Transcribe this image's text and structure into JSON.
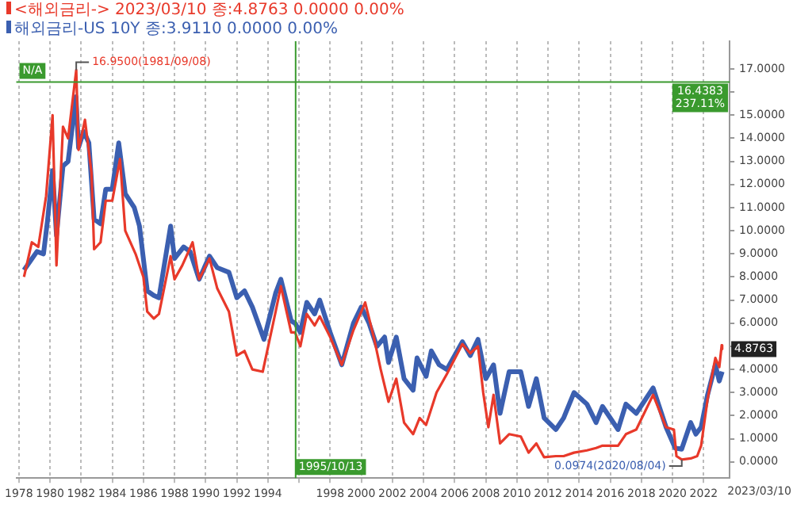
{
  "chart_data": {
    "type": "line",
    "legend": "top left",
    "grid": "x",
    "marker": "none",
    "line_style": "solid",
    "xlim": [
      "1977-11",
      "2023-09"
    ],
    "xticks": [
      {
        "value": "1978",
        "label": "1978"
      },
      {
        "value": "1980",
        "label": "1980"
      },
      {
        "value": "1982",
        "label": "1982"
      },
      {
        "value": "1984",
        "label": "1984"
      },
      {
        "value": "1986",
        "label": "1986"
      },
      {
        "value": "1988",
        "label": "1988"
      },
      {
        "value": "1990",
        "label": "1990"
      },
      {
        "value": "1992",
        "label": "1992"
      },
      {
        "value": "1994",
        "label": "1994"
      },
      {
        "value": "1996",
        "label": null
      },
      {
        "value": "1998",
        "label": "1998"
      },
      {
        "value": "2000",
        "label": "2000"
      },
      {
        "value": "2002",
        "label": "2002"
      },
      {
        "value": "2004",
        "label": "2004"
      },
      {
        "value": "2006",
        "label": "2006"
      },
      {
        "value": "2008",
        "label": "2008"
      },
      {
        "value": "2010",
        "label": "2010"
      },
      {
        "value": "2012",
        "label": "2012"
      },
      {
        "value": "2014",
        "label": "2014"
      },
      {
        "value": "2016",
        "label": "2016"
      },
      {
        "value": "2018",
        "label": "2018"
      },
      {
        "value": "2020",
        "label": "2020"
      },
      {
        "value": "2022",
        "label": "2022"
      }
    ],
    "ylim": [
      -0.7,
      18.2
    ],
    "yticks": [
      {
        "value": 0,
        "label": "0.0000"
      },
      {
        "value": 1,
        "label": "1.0000"
      },
      {
        "value": 2,
        "label": "2.0000"
      },
      {
        "value": 3,
        "label": "3.0000"
      },
      {
        "value": 4,
        "label": "4.0000"
      },
      {
        "value": 5,
        "label": null
      },
      {
        "value": 6,
        "label": "6.0000"
      },
      {
        "value": 7,
        "label": "7.0000"
      },
      {
        "value": 8,
        "label": "8.0000"
      },
      {
        "value": 9,
        "label": "9.0000"
      },
      {
        "value": 10,
        "label": "10.0000"
      },
      {
        "value": 11,
        "label": "11.0000"
      },
      {
        "value": 12,
        "label": "12.0000"
      },
      {
        "value": 13,
        "label": "13.0000"
      },
      {
        "value": 14,
        "label": "14.0000"
      },
      {
        "value": 15,
        "label": "15.0000"
      },
      {
        "value": 16,
        "label": null
      },
      {
        "value": 17,
        "label": "17.0000"
      }
    ],
    "series": [
      {
        "name": "<해외금리-> 2023/03/10 종:4.8763  0.0000 0.00%",
        "color": "#e8392a",
        "x": [
          "1978-05",
          "1978-11",
          "1979-04",
          "1979-10",
          "1980-03",
          "1980-06",
          "1980-11",
          "1981-03",
          "1981-09-08",
          "1981-11",
          "1982-04",
          "1982-09",
          "1982-11",
          "1983-04",
          "1983-08",
          "1984-01",
          "1984-07",
          "1984-11",
          "1985-07",
          "1986-01",
          "1986-04",
          "1986-09",
          "1987-01",
          "1987-10",
          "1988-01",
          "1988-07",
          "1989-03",
          "1989-08",
          "1990-04",
          "1990-10",
          "1991-07",
          "1992-01",
          "1992-07",
          "1993-01",
          "1993-09",
          "1994-07",
          "1994-11",
          "1995-07",
          "1995-10",
          "1996-02",
          "1996-07",
          "1997-01",
          "1997-05",
          "1998-01",
          "1998-10",
          "1999-07",
          "2000-04",
          "2000-11",
          "2001-04",
          "2001-10",
          "2002-04",
          "2002-10",
          "2003-05",
          "2003-10",
          "2004-03",
          "2004-11",
          "2005-07",
          "2006-07",
          "2007-01",
          "2007-07",
          "2007-11",
          "2008-03",
          "2008-07",
          "2008-12",
          "2009-07",
          "2010-04",
          "2010-10",
          "2011-04",
          "2011-10",
          "2012-07",
          "2013-01",
          "2013-09",
          "2014-07",
          "2015-02",
          "2015-07",
          "2016-07",
          "2017-01",
          "2017-09",
          "2018-10",
          "2019-08",
          "2020-02",
          "2020-04",
          "2020-08-04",
          "2021-03",
          "2021-08",
          "2021-11",
          "2022-04",
          "2022-10",
          "2023-01",
          "2023-02-27",
          "2023-03-10"
        ],
        "values": [
          8.0,
          9.5,
          9.3,
          11.5,
          15.0,
          8.5,
          14.5,
          14.0,
          16.95,
          13.5,
          14.8,
          12.5,
          9.2,
          9.5,
          11.3,
          11.3,
          13.1,
          10.0,
          9.0,
          8.0,
          6.5,
          6.2,
          6.4,
          8.9,
          7.9,
          8.5,
          9.5,
          7.9,
          8.8,
          7.5,
          6.5,
          4.6,
          4.8,
          4.0,
          3.9,
          6.5,
          7.6,
          5.6,
          5.6,
          5.0,
          6.4,
          5.9,
          6.3,
          5.4,
          4.2,
          5.7,
          6.9,
          5.3,
          4.0,
          2.6,
          3.6,
          1.7,
          1.2,
          1.9,
          1.6,
          3.0,
          3.8,
          5.1,
          4.7,
          5.0,
          3.0,
          1.5,
          2.9,
          0.8,
          1.2,
          1.1,
          0.4,
          0.8,
          0.2,
          0.25,
          0.25,
          0.4,
          0.5,
          0.6,
          0.7,
          0.7,
          1.2,
          1.4,
          2.9,
          1.5,
          1.4,
          0.25,
          0.1,
          0.15,
          0.25,
          0.7,
          2.7,
          4.5,
          4.1,
          5.05,
          4.88
        ]
      },
      {
        "name": "해외금리-US 10Y 종:3.9110 0.0000 0.00%",
        "color": "#3b5fb0",
        "x": [
          "1978-05",
          "1978-10",
          "1979-03",
          "1979-08",
          "1979-11",
          "1980-03",
          "1980-06",
          "1980-11",
          "1981-03",
          "1981-09",
          "1981-11",
          "1982-03",
          "1982-07",
          "1982-11",
          "1983-04",
          "1983-08",
          "1984-01",
          "1984-06",
          "1984-11",
          "1985-06",
          "1985-10",
          "1986-04",
          "1986-09",
          "1987-01",
          "1987-10",
          "1988-01",
          "1988-08",
          "1989-01",
          "1989-08",
          "1990-04",
          "1990-10",
          "1991-07",
          "1992-01",
          "1992-07",
          "1993-01",
          "1993-10",
          "1994-07",
          "1994-11",
          "1995-07",
          "1995-10",
          "1996-02",
          "1996-07",
          "1997-01",
          "1997-05",
          "1998-01",
          "1998-10",
          "1999-07",
          "2000-01",
          "2000-07",
          "2001-01",
          "2001-07",
          "2001-10",
          "2002-04",
          "2002-10",
          "2003-05",
          "2003-08",
          "2004-03",
          "2004-07",
          "2005-01",
          "2005-07",
          "2006-07",
          "2007-01",
          "2007-07",
          "2008-01",
          "2008-07",
          "2008-12",
          "2009-07",
          "2010-04",
          "2010-10",
          "2011-04",
          "2011-10",
          "2012-07",
          "2013-01",
          "2013-09",
          "2014-07",
          "2015-02",
          "2015-07",
          "2016-07",
          "2017-01",
          "2017-09",
          "2018-10",
          "2019-08",
          "2020-03",
          "2020-08",
          "2021-03",
          "2021-07",
          "2021-11",
          "2022-04",
          "2022-10",
          "2023-01",
          "2023-03-10"
        ],
        "values": [
          8.3,
          8.7,
          9.1,
          9.0,
          10.4,
          12.6,
          9.8,
          12.8,
          13.0,
          15.8,
          13.6,
          14.3,
          13.8,
          10.5,
          10.3,
          11.8,
          11.8,
          13.8,
          11.6,
          11.0,
          10.2,
          7.4,
          7.2,
          7.1,
          10.2,
          8.8,
          9.3,
          9.1,
          7.9,
          8.9,
          8.4,
          8.2,
          7.1,
          7.4,
          6.7,
          5.3,
          7.3,
          7.9,
          6.1,
          6.0,
          5.6,
          6.9,
          6.4,
          7.0,
          5.6,
          4.2,
          6.0,
          6.7,
          6.0,
          5.0,
          5.4,
          4.3,
          5.4,
          3.6,
          3.1,
          4.5,
          3.7,
          4.8,
          4.2,
          4.0,
          5.2,
          4.6,
          5.3,
          3.6,
          4.2,
          2.1,
          3.9,
          3.9,
          2.4,
          3.6,
          1.9,
          1.4,
          1.9,
          3.0,
          2.5,
          1.7,
          2.4,
          1.4,
          2.5,
          2.1,
          3.2,
          1.5,
          0.6,
          0.55,
          1.7,
          1.2,
          1.5,
          2.9,
          4.2,
          3.5,
          3.91
        ]
      }
    ],
    "ref_lines": [
      {
        "axis": "y",
        "value": 16.4383,
        "label": "16.4383 237.11%",
        "color": "#3a9a2e"
      },
      {
        "axis": "x",
        "value": "1995-10-13",
        "label": "1995/10/13",
        "color": "#3a9a2e"
      }
    ],
    "annotations": [
      {
        "text": "16.9500(1981/09/08)",
        "x": "1981-09-08",
        "y": 16.95
      },
      {
        "text": "0.0974(2020/08/04)",
        "x": "2020-08-04",
        "y": 0.0974
      },
      {
        "text": "4.8763",
        "x": "2023-03-10",
        "y": 4.8763
      },
      "N/A",
      "2023/03/10"
    ]
  }
}
